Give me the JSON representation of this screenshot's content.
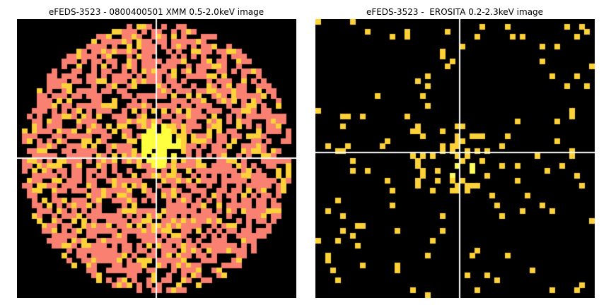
{
  "panels": [
    {
      "title": "eFEDS-3523 - 0800400501 XMM 0.5-2.0keV image",
      "colormap": {
        "background": "#000000",
        "low": "#fa8072",
        "mid": "#ffd23a",
        "high": "#ffff40"
      },
      "crosshair_color": "#ffffff"
    },
    {
      "title": "eFEDS-3523 -  EROSITA 0.2-2.3keV image",
      "colormap": {
        "background": "#000000",
        "low": "#ffd23a",
        "high": "#fffe60"
      },
      "crosshair_color": "#ffffff"
    }
  ]
}
